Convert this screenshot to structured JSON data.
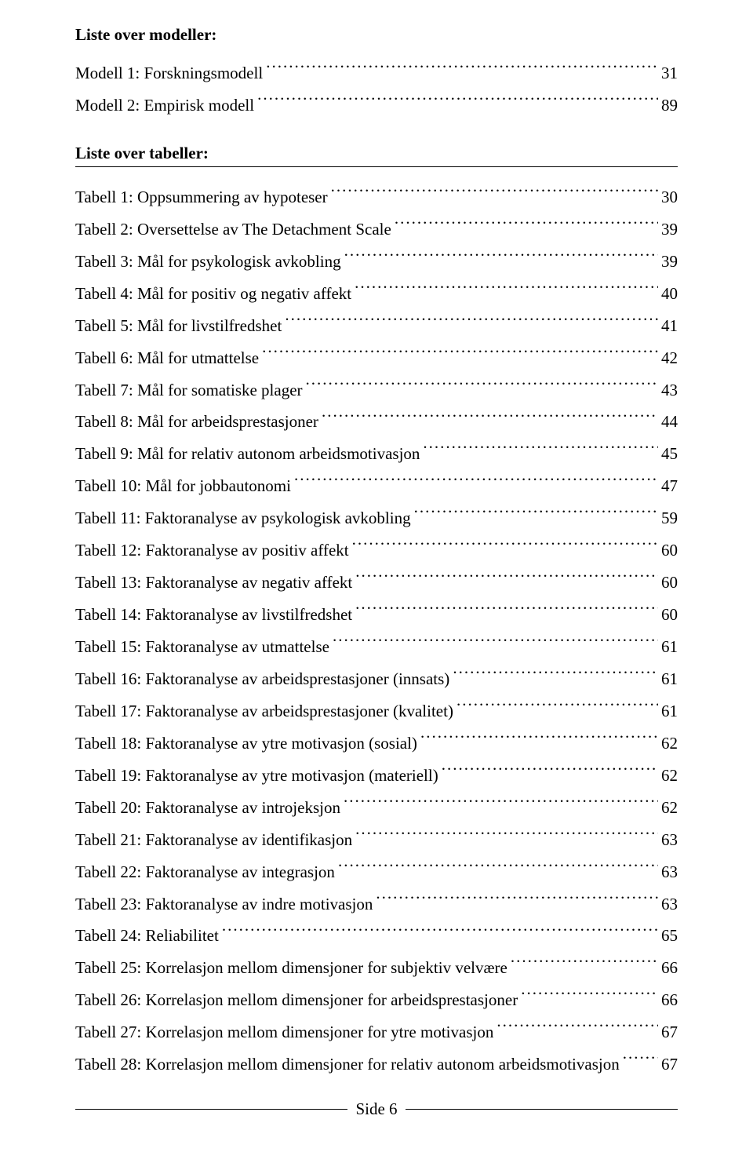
{
  "headings": {
    "models": "Liste over modeller:",
    "tables": "Liste over tabeller:"
  },
  "models": [
    {
      "label": "Modell 1: Forskningsmodell",
      "page": "31"
    },
    {
      "label": "Modell 2: Empirisk modell",
      "page": "89"
    }
  ],
  "tables": [
    {
      "label": "Tabell 1: Oppsummering av hypoteser",
      "page": "30"
    },
    {
      "label": "Tabell 2: Oversettelse av The Detachment Scale",
      "page": "39"
    },
    {
      "label": "Tabell 3: Mål for psykologisk avkobling",
      "page": "39"
    },
    {
      "label": "Tabell 4: Mål for positiv og negativ affekt",
      "page": "40"
    },
    {
      "label": "Tabell 5: Mål for livstilfredshet",
      "page": "41"
    },
    {
      "label": "Tabell 6: Mål for utmattelse",
      "page": "42"
    },
    {
      "label": "Tabell 7: Mål for somatiske plager",
      "page": "43"
    },
    {
      "label": "Tabell 8: Mål for arbeidsprestasjoner",
      "page": "44"
    },
    {
      "label": "Tabell 9: Mål for relativ autonom arbeidsmotivasjon",
      "page": "45"
    },
    {
      "label": "Tabell 10: Mål for jobbautonomi",
      "page": "47"
    },
    {
      "label": "Tabell 11: Faktoranalyse av psykologisk avkobling",
      "page": "59"
    },
    {
      "label": "Tabell 12: Faktoranalyse av positiv affekt",
      "page": "60"
    },
    {
      "label": "Tabell 13: Faktoranalyse av negativ affekt",
      "page": "60"
    },
    {
      "label": "Tabell 14: Faktoranalyse av livstilfredshet",
      "page": "60"
    },
    {
      "label": "Tabell 15: Faktoranalyse av utmattelse",
      "page": "61"
    },
    {
      "label": "Tabell 16: Faktoranalyse av arbeidsprestasjoner (innsats)",
      "page": "61"
    },
    {
      "label": "Tabell 17: Faktoranalyse av arbeidsprestasjoner (kvalitet)",
      "page": "61"
    },
    {
      "label": "Tabell 18: Faktoranalyse av ytre motivasjon (sosial)",
      "page": "62"
    },
    {
      "label": "Tabell 19: Faktoranalyse av ytre motivasjon (materiell)",
      "page": "62"
    },
    {
      "label": "Tabell 20: Faktoranalyse av introjeksjon",
      "page": "62"
    },
    {
      "label": "Tabell 21: Faktoranalyse av identifikasjon",
      "page": "63"
    },
    {
      "label": "Tabell 22: Faktoranalyse av integrasjon",
      "page": "63"
    },
    {
      "label": "Tabell 23: Faktoranalyse av indre motivasjon",
      "page": "63"
    },
    {
      "label": "Tabell 24: Reliabilitet",
      "page": "65"
    },
    {
      "label": "Tabell 25: Korrelasjon mellom dimensjoner for subjektiv velvære",
      "page": "66"
    },
    {
      "label": "Tabell 26: Korrelasjon mellom dimensjoner for arbeidsprestasjoner",
      "page": "66"
    },
    {
      "label": "Tabell 27: Korrelasjon mellom dimensjoner for ytre motivasjon",
      "page": "67"
    },
    {
      "label": "Tabell 28: Korrelasjon mellom dimensjoner for relativ autonom arbeidsmotivasjon",
      "page": "67"
    }
  ],
  "footer": {
    "text": "Side 6"
  }
}
